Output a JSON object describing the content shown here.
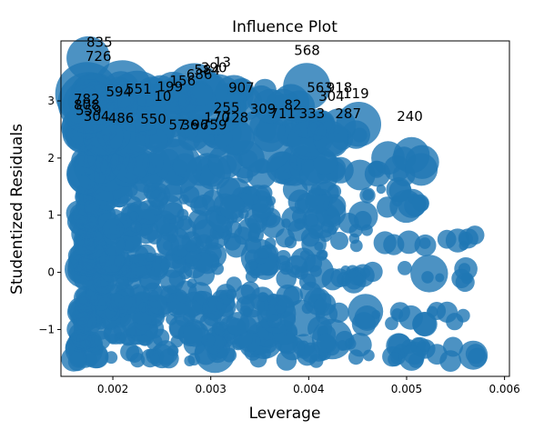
{
  "chart_data": {
    "type": "scatter",
    "title": "Influence Plot",
    "xlabel": "Leverage",
    "ylabel": "Studentized Residuals",
    "xlim": [
      0.00147,
      0.00605
    ],
    "ylim": [
      -1.82,
      4.05
    ],
    "xticks": [
      0.002,
      0.003,
      0.004,
      0.005,
      0.006
    ],
    "xtick_labels": [
      "0.002",
      "0.003",
      "0.004",
      "0.005",
      "0.006"
    ],
    "yticks": [
      -1,
      0,
      1,
      2,
      3
    ],
    "ytick_labels": [
      "−1",
      "0",
      "1",
      "2",
      "3"
    ],
    "grid": false,
    "marker_color": "#1f77b4",
    "bands": [
      {
        "y": -1.4,
        "xmin": 0.0016,
        "xmax": 0.00575
      },
      {
        "y": -1.1,
        "xmin": 0.00165,
        "xmax": 0.0044
      },
      {
        "y": -0.75,
        "xmin": 0.00165,
        "xmax": 0.0057
      },
      {
        "y": -0.48,
        "xmin": 0.0017,
        "xmax": 0.0042
      },
      {
        "y": -0.05,
        "xmin": 0.00165,
        "xmax": 0.00575
      },
      {
        "y": 0.2,
        "xmin": 0.00165,
        "xmax": 0.0042
      },
      {
        "y": 0.6,
        "xmin": 0.0017,
        "xmax": 0.0058
      },
      {
        "y": 0.9,
        "xmin": 0.00165,
        "xmax": 0.0046
      },
      {
        "y": 1.3,
        "xmin": 0.0017,
        "xmax": 0.0053
      },
      {
        "y": 1.85,
        "xmin": 0.0017,
        "xmax": 0.0052
      },
      {
        "y": 2.45,
        "xmin": 0.00165,
        "xmax": 0.0046
      },
      {
        "y": 3.05,
        "xmin": 0.0017,
        "xmax": 0.004
      }
    ],
    "annotations": [
      {
        "label": "835",
        "x": 0.00173,
        "y": 3.95
      },
      {
        "label": "726",
        "x": 0.00172,
        "y": 3.7
      },
      {
        "label": "568",
        "x": 0.00385,
        "y": 3.8
      },
      {
        "label": "13",
        "x": 0.00303,
        "y": 3.6
      },
      {
        "label": "390",
        "x": 0.0029,
        "y": 3.5
      },
      {
        "label": "584",
        "x": 0.00283,
        "y": 3.46
      },
      {
        "label": "686",
        "x": 0.00275,
        "y": 3.38
      },
      {
        "label": "156",
        "x": 0.00258,
        "y": 3.27
      },
      {
        "label": "199",
        "x": 0.00245,
        "y": 3.17
      },
      {
        "label": "551",
        "x": 0.00213,
        "y": 3.13
      },
      {
        "label": "594",
        "x": 0.00193,
        "y": 3.08
      },
      {
        "label": "10",
        "x": 0.00242,
        "y": 3.0
      },
      {
        "label": "907",
        "x": 0.00318,
        "y": 3.15
      },
      {
        "label": "563",
        "x": 0.00398,
        "y": 3.15
      },
      {
        "label": "918",
        "x": 0.00418,
        "y": 3.15
      },
      {
        "label": "119",
        "x": 0.00435,
        "y": 3.05
      },
      {
        "label": "304",
        "x": 0.0041,
        "y": 3.0
      },
      {
        "label": "782",
        "x": 0.0016,
        "y": 2.95
      },
      {
        "label": "808",
        "x": 0.0016,
        "y": 2.85
      },
      {
        "label": "559",
        "x": 0.00162,
        "y": 2.75
      },
      {
        "label": "304",
        "x": 0.0017,
        "y": 2.65
      },
      {
        "label": "486",
        "x": 0.00195,
        "y": 2.62
      },
      {
        "label": "550",
        "x": 0.00228,
        "y": 2.6
      },
      {
        "label": "255",
        "x": 0.00303,
        "y": 2.8
      },
      {
        "label": "309",
        "x": 0.0034,
        "y": 2.78
      },
      {
        "label": "82",
        "x": 0.00375,
        "y": 2.85
      },
      {
        "label": "711",
        "x": 0.0036,
        "y": 2.7
      },
      {
        "label": "333",
        "x": 0.0039,
        "y": 2.7
      },
      {
        "label": "287",
        "x": 0.00427,
        "y": 2.7
      },
      {
        "label": "240",
        "x": 0.0049,
        "y": 2.65
      },
      {
        "label": "170",
        "x": 0.00293,
        "y": 2.63
      },
      {
        "label": "728",
        "x": 0.00312,
        "y": 2.63
      },
      {
        "label": "57",
        "x": 0.00257,
        "y": 2.5
      },
      {
        "label": "36",
        "x": 0.0027,
        "y": 2.5
      },
      {
        "label": "96",
        "x": 0.0028,
        "y": 2.5
      },
      {
        "label": "759",
        "x": 0.0029,
        "y": 2.5
      }
    ]
  }
}
